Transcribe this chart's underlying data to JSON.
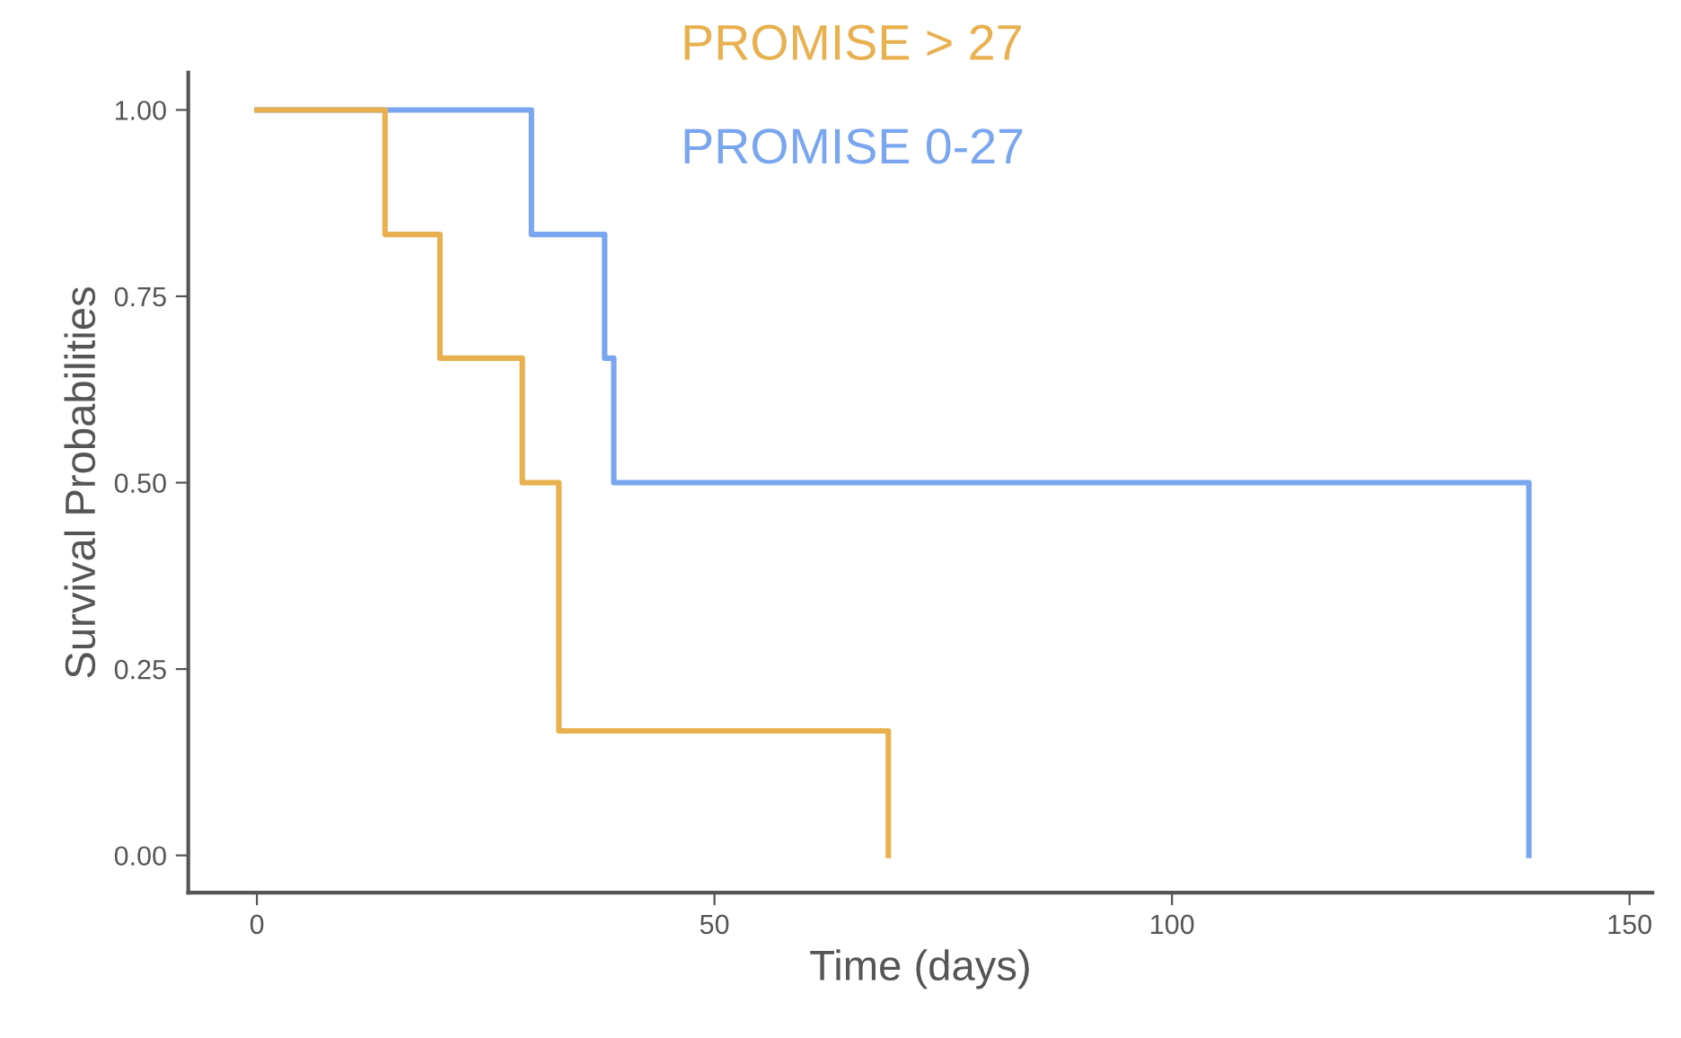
{
  "chart_data": {
    "type": "step",
    "xlabel": "Time (days)",
    "ylabel": "Survival Probabilities",
    "series": [
      {
        "name": "PROMISE > 27",
        "color": "#e8b04f",
        "x": [
          0,
          14,
          20,
          29,
          33,
          69
        ],
        "values": [
          1.0,
          0.833,
          0.667,
          0.5,
          0.167,
          0.0
        ]
      },
      {
        "name": "PROMISE 0-27",
        "color": "#7aa6f0",
        "x": [
          0,
          30,
          38,
          39,
          139
        ],
        "values": [
          1.0,
          0.833,
          0.667,
          0.5,
          0.0
        ]
      }
    ],
    "xlim": [
      -7.5,
      152.5
    ],
    "xticks": [
      0,
      50,
      100,
      150
    ],
    "ylim": [
      -0.05,
      1.05
    ],
    "yticks": [
      {
        "value": 0,
        "label": "0.00"
      },
      {
        "value": 0.25,
        "label": "0.25"
      },
      {
        "value": 0.5,
        "label": "0.50"
      },
      {
        "value": 0.75,
        "label": "0.75"
      },
      {
        "value": 1,
        "label": "1.00"
      }
    ],
    "grid": false,
    "legend": "top",
    "marker": "none",
    "line_style": "solid"
  }
}
